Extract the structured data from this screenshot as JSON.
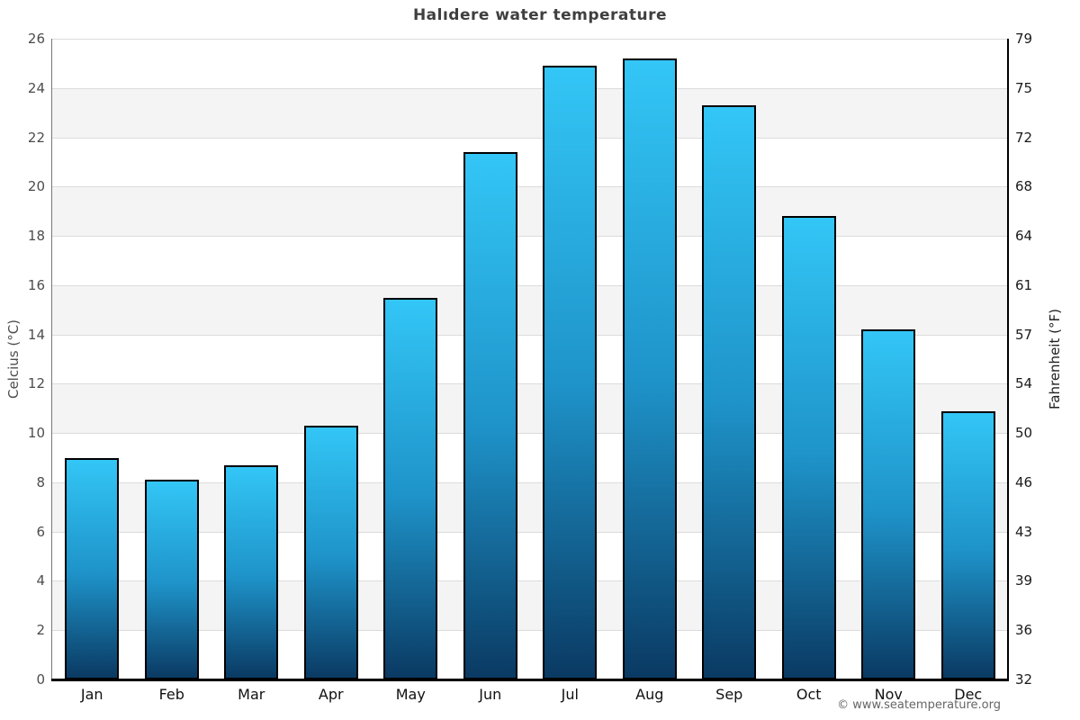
{
  "title": "Halıdere water temperature",
  "axes": {
    "left_label": "Celcius (°C)",
    "right_label": "Fahrenheit (°F)"
  },
  "footer": {
    "copyright": "© www.seatemperature.org"
  },
  "colors": {
    "bar_gradient_top": "#33c6f6",
    "bar_gradient_mid": "#1e93c9",
    "bar_gradient_bottom": "#0a3a63",
    "bar_border": "#000000",
    "band_gray": "#f4f4f4",
    "band_white": "#ffffff",
    "grid_line": "#dcdcdc",
    "axis_line": "#000000",
    "title_text": "#3f3f3f"
  },
  "chart_data": {
    "type": "bar",
    "title": "Halıdere water temperature",
    "categories": [
      "Jan",
      "Feb",
      "Mar",
      "Apr",
      "May",
      "Jun",
      "Jul",
      "Aug",
      "Sep",
      "Oct",
      "Nov",
      "Dec"
    ],
    "values": [
      9.0,
      8.1,
      8.7,
      10.3,
      15.5,
      21.4,
      24.9,
      25.2,
      23.3,
      18.8,
      14.2,
      10.9
    ],
    "xlabel": "",
    "ylabel": "Celcius (°C)",
    "ylabel_right": "Fahrenheit (°F)",
    "ylim": [
      0,
      26
    ],
    "left_ticks": [
      26,
      24,
      22,
      20,
      18,
      16,
      14,
      12,
      10,
      8,
      6,
      4,
      2,
      0
    ],
    "right_ticks": [
      79,
      75,
      72,
      68,
      64,
      61,
      57,
      54,
      50,
      46,
      43,
      39,
      36,
      32
    ],
    "grid": "horizontal",
    "band_shading": true,
    "legend": "none"
  }
}
